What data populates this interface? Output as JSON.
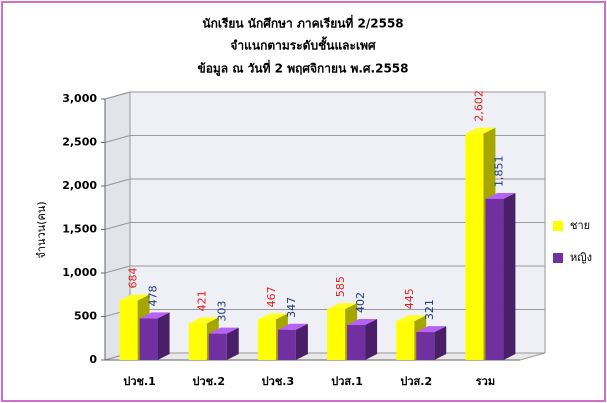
{
  "chart_data": {
    "type": "bar3d",
    "title": [
      "นักเรียน นักศึกษา ภาคเรียนที่ 2/2558",
      "จำแนกตามระดับชั้นและเพศ",
      "ข้อมูล ณ วันที่ 2 พฤศจิกายน พ.ศ.2558"
    ],
    "y_label": "จำนวน(คน)",
    "categories": [
      "ปวช.1",
      "ปวช.2",
      "ปวช.3",
      "ปวส.1",
      "ปวส.2",
      "รวม"
    ],
    "series": [
      {
        "name": "ชาย",
        "color": "#ffff00",
        "label_color": "#e02020",
        "values": [
          684,
          421,
          467,
          585,
          445,
          2602
        ],
        "value_labels": [
          "684",
          "421",
          "467",
          "585",
          "445",
          "2,602"
        ]
      },
      {
        "name": "หญิง",
        "color": "#7030a0",
        "label_color": "#1f3a7a",
        "values": [
          478,
          303,
          347,
          402,
          321,
          1851
        ],
        "value_labels": [
          "478",
          "303",
          "347",
          "402",
          "321",
          "1,851"
        ]
      }
    ],
    "ylim": [
      0,
      3000
    ],
    "yticks": [
      0,
      500,
      {
        "value": 1000,
        "label": "1,000"
      },
      {
        "value": 1500,
        "label": "1,500"
      },
      {
        "value": 2000,
        "label": "2,000"
      },
      {
        "value": 2500,
        "label": "2,500"
      },
      {
        "value": 3000,
        "label": "3,000"
      }
    ],
    "grid": true,
    "legend": "right"
  }
}
